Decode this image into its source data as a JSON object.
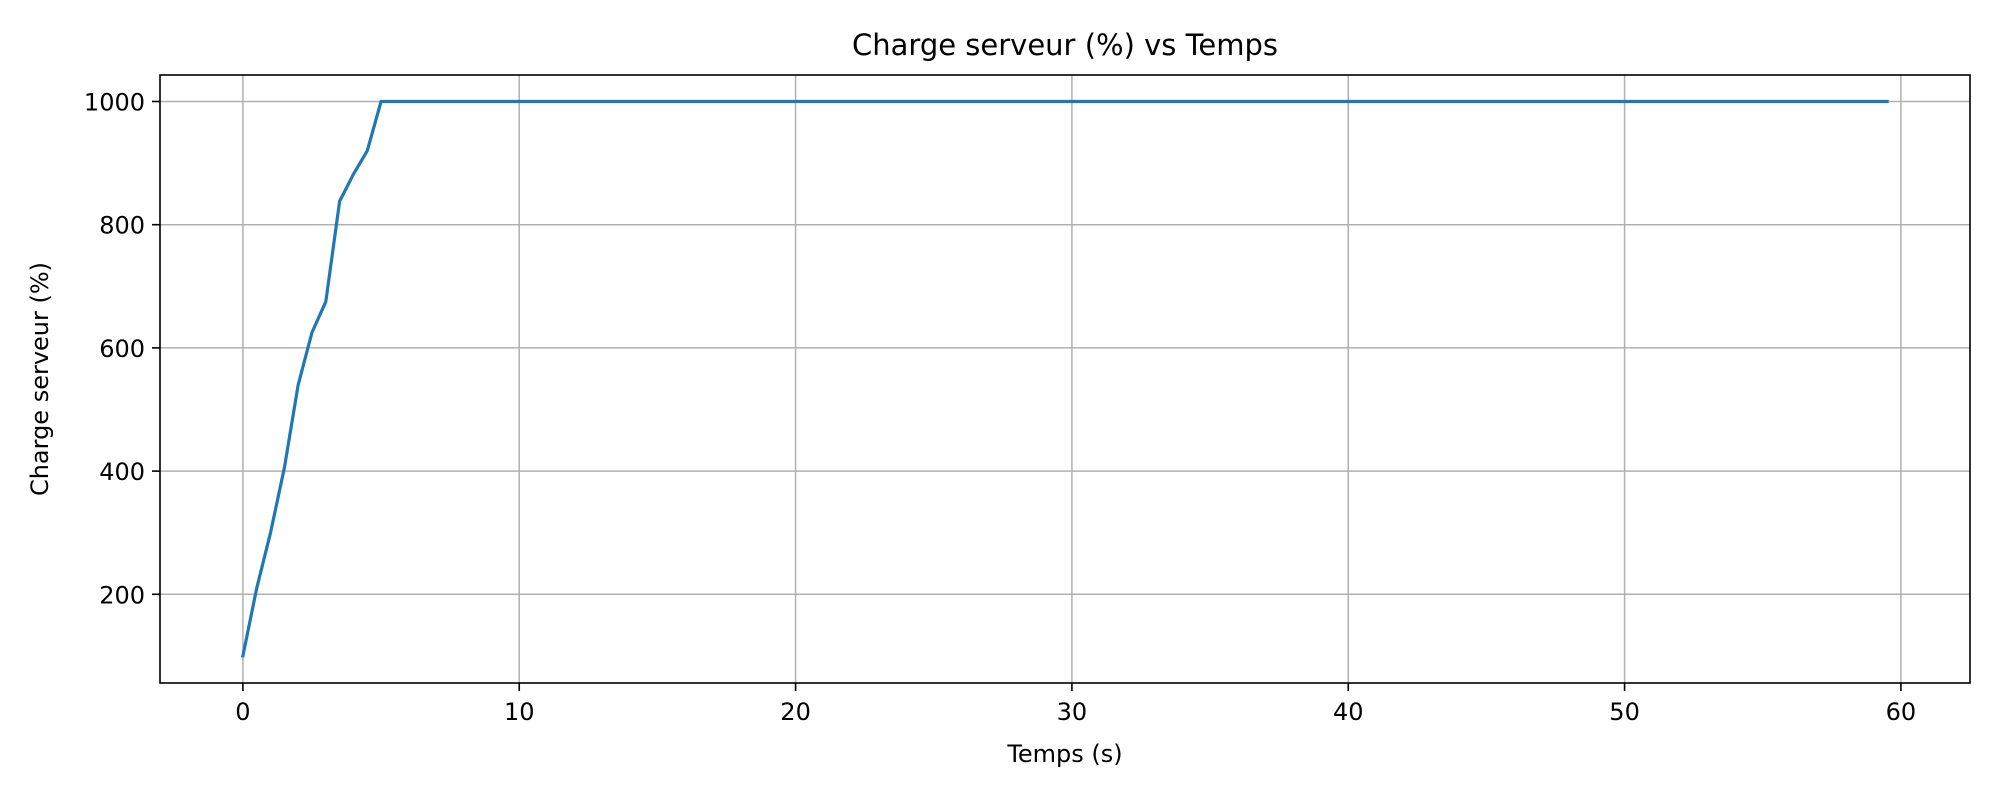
{
  "chart_data": {
    "type": "line",
    "title": "Charge serveur (%) vs Temps",
    "xlabel": "Temps (s)",
    "ylabel": "Charge serveur (%)",
    "xlim": [
      -3,
      62.5
    ],
    "ylim": [
      56,
      1043
    ],
    "xticks": [
      0,
      10,
      20,
      30,
      40,
      50,
      60
    ],
    "yticks": [
      200,
      400,
      600,
      800,
      1000
    ],
    "grid": true,
    "series": [
      {
        "color": "#1f77b4",
        "x": [
          0,
          0.5,
          1,
          1.5,
          2,
          2.5,
          3,
          3.5,
          4,
          4.5,
          5,
          5.5,
          6,
          6.5,
          7,
          7.5,
          8,
          8.5,
          9,
          9.5,
          10,
          10.5,
          11,
          11.5,
          12,
          12.5,
          13,
          13.5,
          14,
          14.5,
          15,
          15.5,
          16,
          16.5,
          17,
          17.5,
          18,
          18.5,
          19,
          19.5,
          20,
          20.5,
          21,
          21.5,
          22,
          22.5,
          23,
          23.5,
          24,
          24.5,
          25,
          25.5,
          26,
          26.5,
          27,
          27.5,
          28,
          28.5,
          29,
          29.5,
          30,
          30.5,
          31,
          31.5,
          32,
          32.5,
          33,
          33.5,
          34,
          34.5,
          35,
          35.5,
          36,
          36.5,
          37,
          37.5,
          38,
          38.5,
          39,
          39.5,
          40,
          40.5,
          41,
          41.5,
          42,
          42.5,
          43,
          43.5,
          44,
          44.5,
          45,
          45.5,
          46,
          46.5,
          47,
          47.5,
          48,
          48.5,
          49,
          49.5,
          50,
          50.5,
          51,
          51.5,
          52,
          52.5,
          53,
          53.5,
          54,
          54.5,
          55,
          55.5,
          56,
          56.5,
          57,
          57.5,
          58,
          58.5,
          59,
          59.5
        ],
        "y": [
          100,
          210,
          300,
          405,
          540,
          625,
          675,
          838,
          882,
          920,
          1000,
          1000,
          1000,
          1000,
          1000,
          1000,
          1000,
          1000,
          1000,
          1000,
          1000,
          1000,
          1000,
          1000,
          1000,
          1000,
          1000,
          1000,
          1000,
          1000,
          1000,
          1000,
          1000,
          1000,
          1000,
          1000,
          1000,
          1000,
          1000,
          1000,
          1000,
          1000,
          1000,
          1000,
          1000,
          1000,
          1000,
          1000,
          1000,
          1000,
          1000,
          1000,
          1000,
          1000,
          1000,
          1000,
          1000,
          1000,
          1000,
          1000,
          1000,
          1000,
          1000,
          1000,
          1000,
          1000,
          1000,
          1000,
          1000,
          1000,
          1000,
          1000,
          1000,
          1000,
          1000,
          1000,
          1000,
          1000,
          1000,
          1000,
          1000,
          1000,
          1000,
          1000,
          1000,
          1000,
          1000,
          1000,
          1000,
          1000,
          1000,
          1000,
          1000,
          1000,
          1000,
          1000,
          1000,
          1000,
          1000,
          1000,
          1000,
          1000,
          1000,
          1000,
          1000,
          1000,
          1000,
          1000,
          1000,
          1000,
          1000,
          1000,
          1000,
          1000,
          1000,
          1000,
          1000,
          1000,
          1000,
          1000
        ]
      }
    ]
  }
}
